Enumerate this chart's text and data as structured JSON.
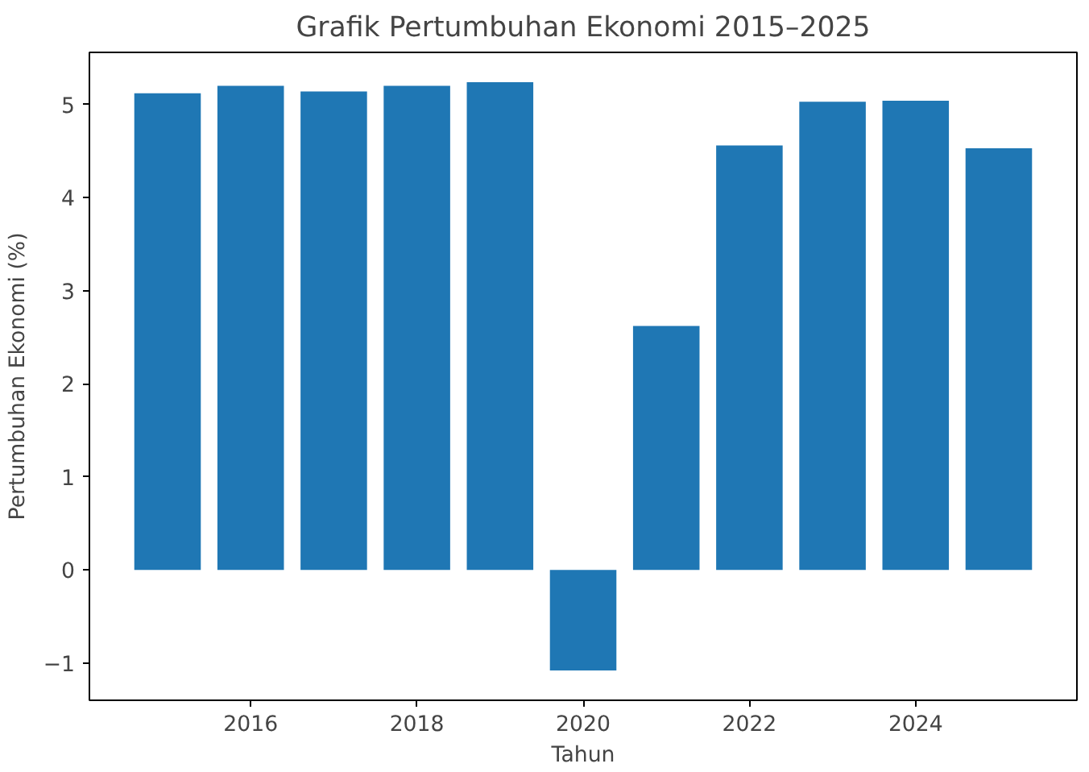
{
  "chart_data": {
    "type": "bar",
    "title": "Grafik Pertumbuhan Ekonomi 2015–2025",
    "xlabel": "Tahun",
    "ylabel": "Pertumbuhan Ekonomi (%)",
    "x": [
      2015,
      2016,
      2017,
      2018,
      2019,
      2020,
      2021,
      2022,
      2023,
      2024,
      2025
    ],
    "values": [
      5.12,
      5.2,
      5.14,
      5.2,
      5.24,
      -1.08,
      2.62,
      4.56,
      5.03,
      5.04,
      4.53
    ],
    "color": "#1f77b4",
    "xlim": [
      2014.06,
      2025.94
    ],
    "xticks": [
      2016,
      2018,
      2020,
      2022,
      2024
    ],
    "ylim": [
      -1.4,
      5.56
    ],
    "yticks": [
      {
        "value": -1,
        "label": "−1"
      },
      0,
      1,
      2,
      3,
      4,
      5
    ],
    "grid": false
  }
}
